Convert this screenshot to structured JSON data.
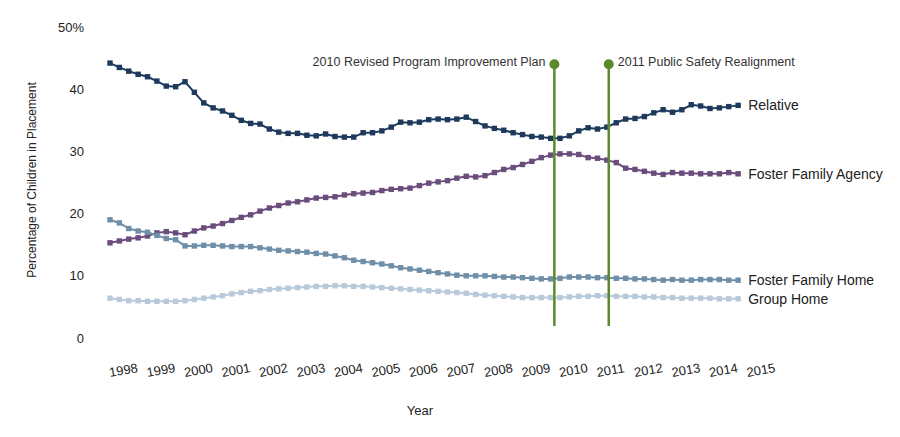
{
  "chart_data": {
    "type": "line",
    "x_label": "Year",
    "y_label": "Percentage of Children in Placement",
    "x": [
      1998,
      1998.25,
      1998.5,
      1998.75,
      1999,
      1999.25,
      1999.5,
      1999.75,
      2000,
      2000.25,
      2000.5,
      2000.75,
      2001,
      2001.25,
      2001.5,
      2001.75,
      2002,
      2002.25,
      2002.5,
      2002.75,
      2003,
      2003.25,
      2003.5,
      2003.75,
      2004,
      2004.25,
      2004.5,
      2004.75,
      2005,
      2005.25,
      2005.5,
      2005.75,
      2006,
      2006.25,
      2006.5,
      2006.75,
      2007,
      2007.25,
      2007.5,
      2007.75,
      2008,
      2008.25,
      2008.5,
      2008.75,
      2009,
      2009.25,
      2009.5,
      2009.75,
      2010,
      2010.25,
      2010.5,
      2010.75,
      2011,
      2011.25,
      2011.5,
      2011.75,
      2012,
      2012.25,
      2012.5,
      2012.75,
      2013,
      2013.25,
      2013.5,
      2013.75,
      2014,
      2014.25,
      2014.5,
      2014.75
    ],
    "xlim": [
      1998,
      2015
    ],
    "xticks": [
      1998,
      1999,
      2000,
      2001,
      2002,
      2003,
      2004,
      2005,
      2006,
      2007,
      2008,
      2009,
      2010,
      2011,
      2012,
      2013,
      2014,
      2015
    ],
    "ylim": [
      0,
      50
    ],
    "yticks": [
      0,
      10,
      20,
      30,
      40,
      {
        "value": 50,
        "label": "50%"
      }
    ],
    "grid": false,
    "series": [
      {
        "name": "Relative",
        "color": "#1d3a5c",
        "marker": "square",
        "values": [
          44.2,
          43.5,
          42.9,
          42.4,
          42.0,
          41.3,
          40.5,
          40.4,
          41.2,
          39.5,
          37.8,
          37.0,
          36.5,
          35.8,
          35.0,
          34.5,
          34.4,
          33.6,
          33.1,
          32.9,
          32.9,
          32.6,
          32.5,
          32.8,
          32.4,
          32.3,
          32.3,
          33.0,
          33.0,
          33.3,
          33.9,
          34.7,
          34.6,
          34.7,
          35.1,
          35.2,
          35.1,
          35.2,
          35.5,
          34.8,
          34.1,
          33.7,
          33.4,
          33.0,
          32.7,
          32.4,
          32.3,
          32.1,
          32.1,
          32.5,
          33.3,
          33.8,
          33.6,
          33.9,
          34.6,
          35.2,
          35.3,
          35.6,
          36.2,
          36.7,
          36.3,
          36.7,
          37.5,
          37.3,
          36.9,
          37.0,
          37.2,
          37.4
        ]
      },
      {
        "name": "Foster Family Agency",
        "color": "#6a4c7d",
        "marker": "square",
        "values": [
          15.3,
          15.6,
          15.9,
          16.1,
          16.4,
          16.9,
          17.1,
          16.9,
          16.6,
          17.2,
          17.7,
          18.0,
          18.4,
          18.9,
          19.4,
          19.8,
          20.4,
          20.9,
          21.3,
          21.7,
          21.9,
          22.2,
          22.5,
          22.6,
          22.7,
          23.0,
          23.2,
          23.3,
          23.4,
          23.7,
          23.9,
          24.0,
          24.1,
          24.5,
          24.9,
          25.1,
          25.3,
          25.7,
          26.0,
          25.9,
          26.1,
          26.6,
          27.1,
          27.4,
          27.9,
          28.4,
          29.0,
          29.4,
          29.6,
          29.6,
          29.5,
          29.0,
          28.9,
          28.6,
          28.2,
          27.3,
          27.1,
          26.8,
          26.5,
          26.3,
          26.6,
          26.5,
          26.5,
          26.4,
          26.4,
          26.4,
          26.6,
          26.4
        ]
      },
      {
        "name": "Foster Family Home",
        "color": "#6f8ea8",
        "marker": "square",
        "values": [
          19.0,
          18.5,
          17.6,
          17.2,
          17.0,
          16.5,
          16.0,
          15.8,
          14.8,
          14.8,
          14.9,
          14.9,
          14.8,
          14.7,
          14.7,
          14.7,
          14.5,
          14.3,
          14.1,
          14.0,
          13.9,
          13.8,
          13.6,
          13.5,
          13.2,
          12.9,
          12.5,
          12.3,
          12.1,
          11.9,
          11.6,
          11.3,
          11.1,
          10.9,
          10.7,
          10.5,
          10.3,
          10.1,
          10.0,
          10.0,
          10.0,
          9.9,
          9.8,
          9.8,
          9.7,
          9.6,
          9.5,
          9.5,
          9.6,
          9.8,
          9.8,
          9.8,
          9.7,
          9.7,
          9.6,
          9.6,
          9.5,
          9.5,
          9.4,
          9.3,
          9.4,
          9.3,
          9.3,
          9.4,
          9.4,
          9.4,
          9.3,
          9.3
        ]
      },
      {
        "name": "Group Home",
        "color": "#b8c9d9",
        "marker": "square",
        "values": [
          6.4,
          6.2,
          6.0,
          6.0,
          5.9,
          5.9,
          5.9,
          5.9,
          6.0,
          6.2,
          6.4,
          6.6,
          6.8,
          7.1,
          7.3,
          7.5,
          7.6,
          7.8,
          7.9,
          8.0,
          8.1,
          8.2,
          8.3,
          8.3,
          8.4,
          8.4,
          8.3,
          8.3,
          8.2,
          8.1,
          8.0,
          7.9,
          7.8,
          7.7,
          7.6,
          7.5,
          7.4,
          7.3,
          7.2,
          7.0,
          6.9,
          6.8,
          6.7,
          6.6,
          6.5,
          6.5,
          6.5,
          6.5,
          6.5,
          6.6,
          6.7,
          6.7,
          6.8,
          6.8,
          6.7,
          6.7,
          6.7,
          6.6,
          6.6,
          6.5,
          6.5,
          6.4,
          6.4,
          6.4,
          6.4,
          6.3,
          6.3,
          6.3
        ]
      }
    ],
    "annotations": [
      {
        "x": 2009.85,
        "y": 44,
        "text": "2010 Revised Program Improvement Plan",
        "color": "#5b8a2c"
      },
      {
        "x": 2011.3,
        "y": 44,
        "text": "2011 Public Safety Realignment",
        "color": "#5b8a2c"
      }
    ]
  }
}
